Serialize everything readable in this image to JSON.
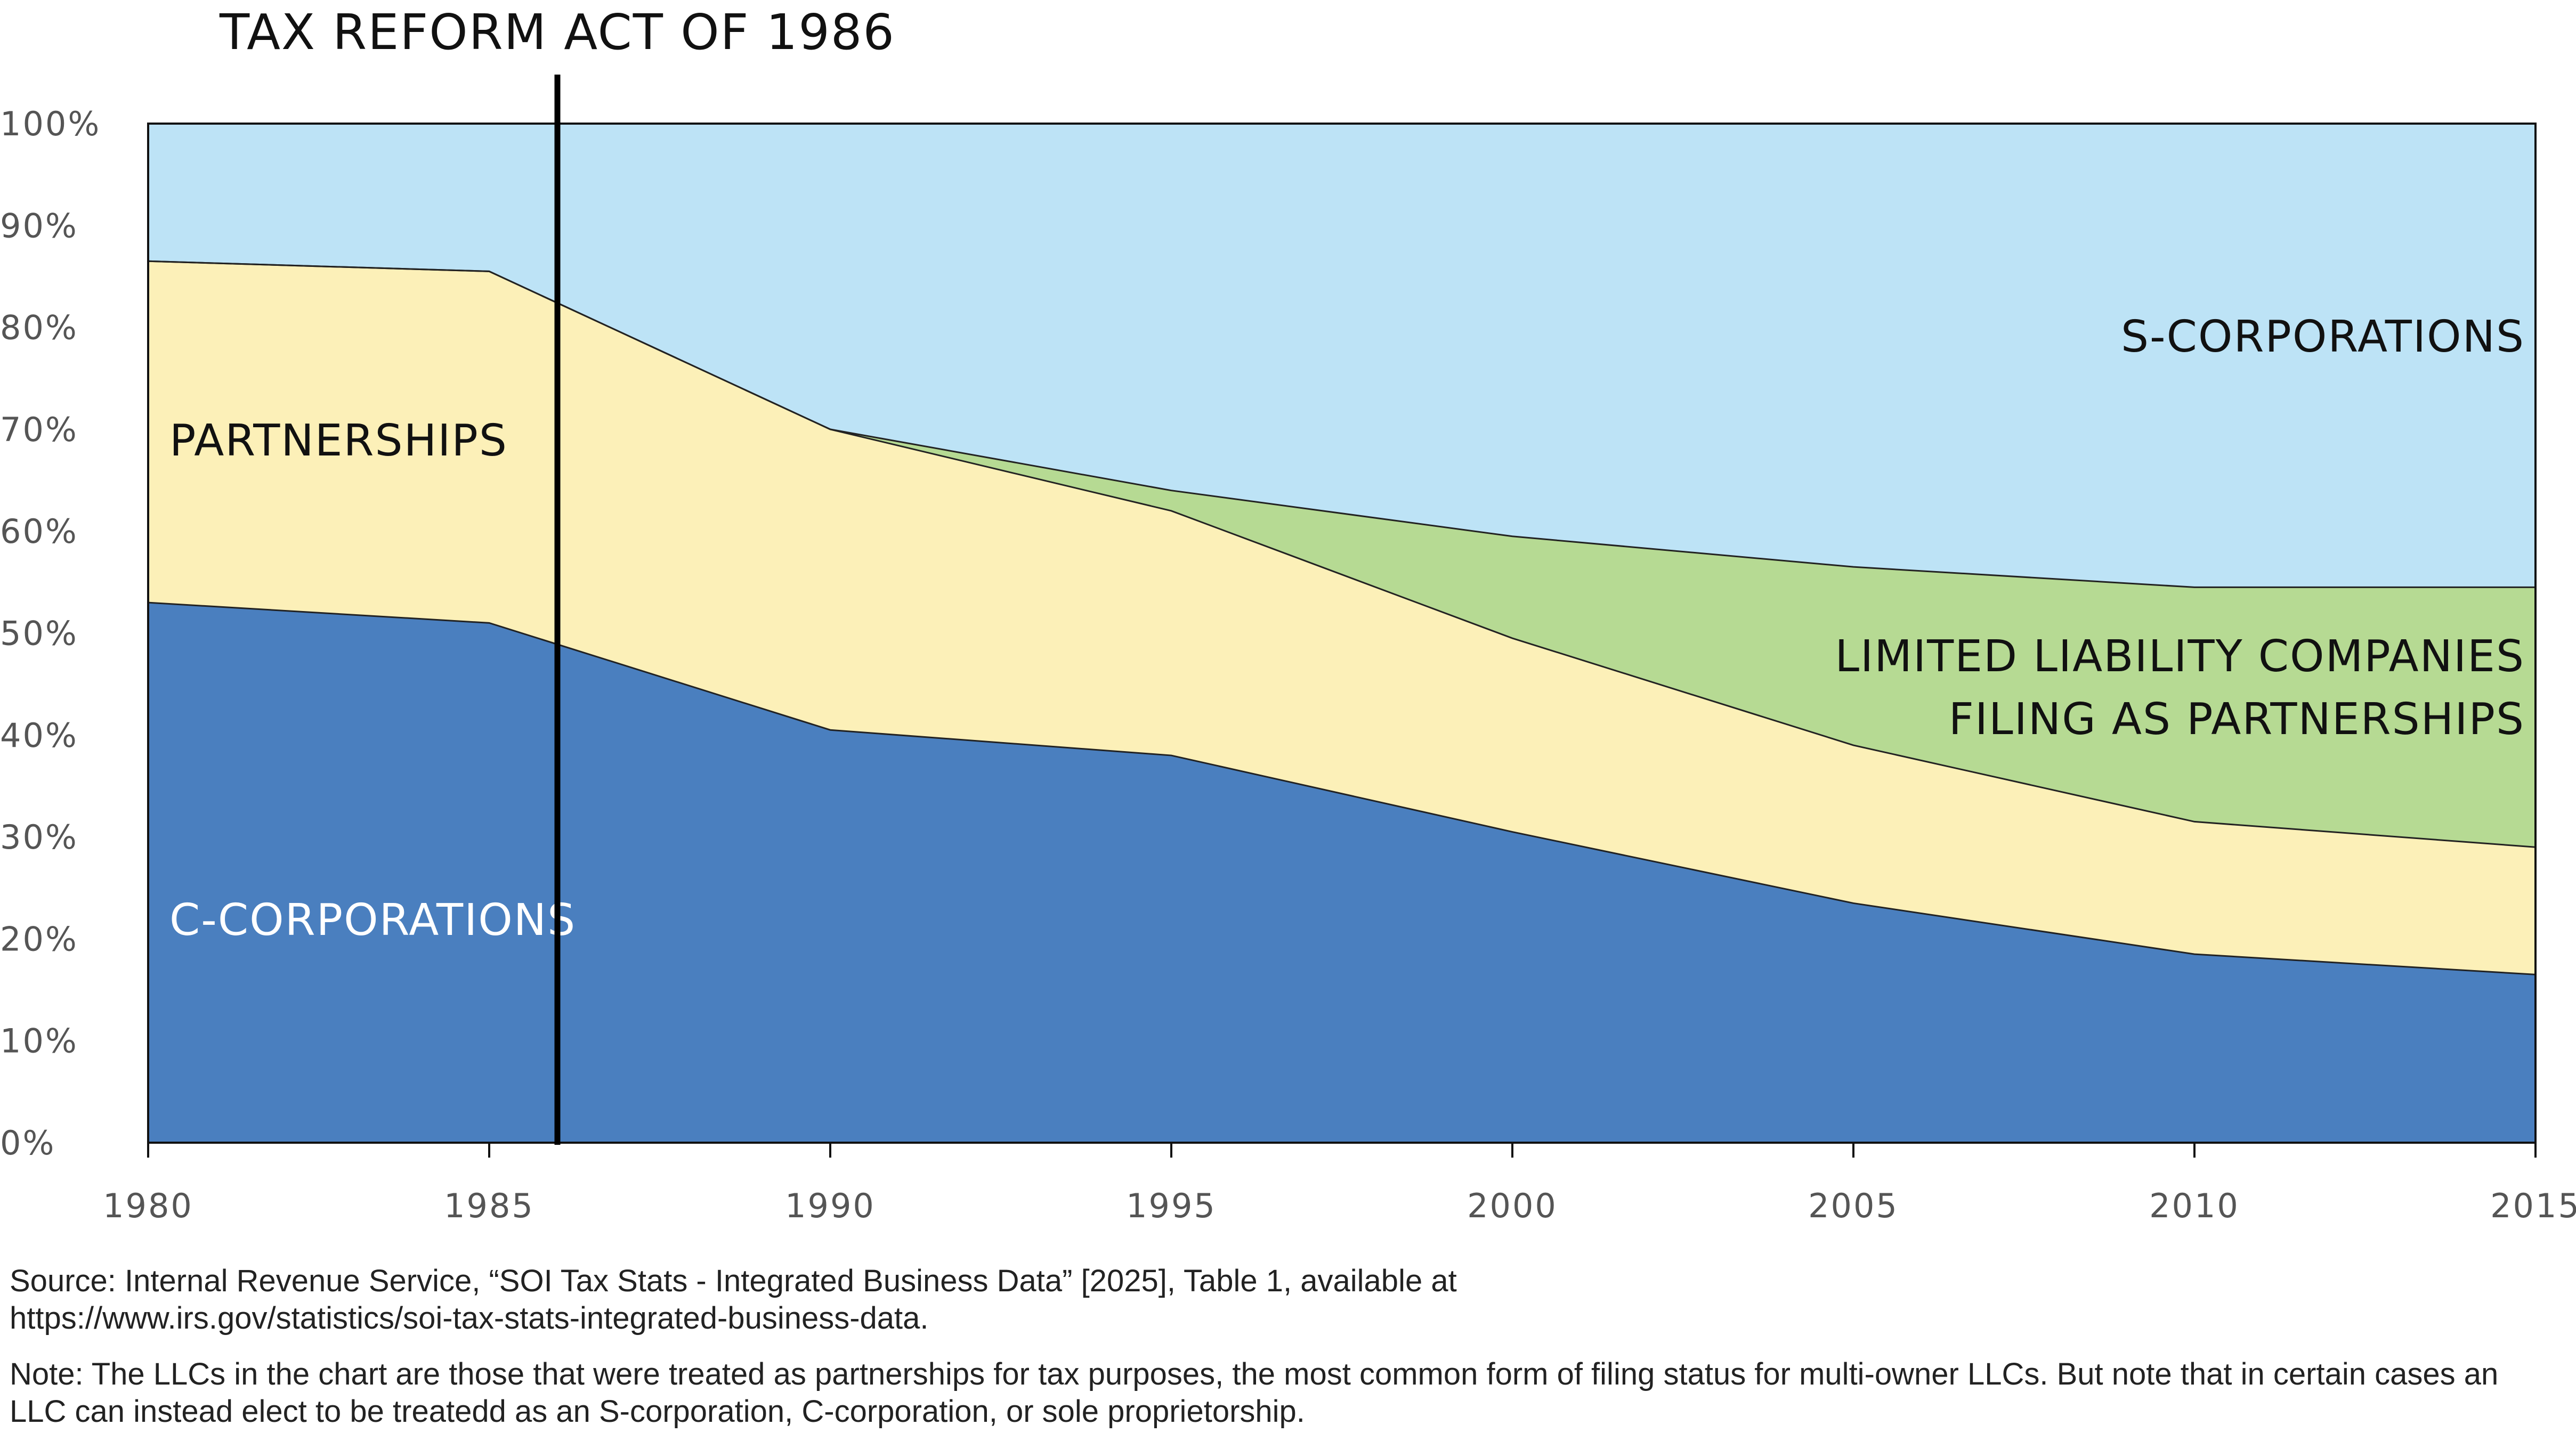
{
  "chart_data": {
    "type": "area",
    "stacked": true,
    "normalized": true,
    "x": [
      1980,
      1985,
      1990,
      1995,
      2000,
      2005,
      2010,
      2015
    ],
    "series": [
      {
        "name": "C-CORPORATIONS",
        "values": [
          53,
          51,
          40.5,
          38,
          30.5,
          23.5,
          18.5,
          16.5
        ],
        "color": "#4a7fbf"
      },
      {
        "name": "PARTNERSHIPS",
        "values": [
          33.5,
          34.5,
          29.5,
          24,
          19,
          15.5,
          13,
          12.5
        ],
        "color": "#fcf0b8"
      },
      {
        "name": "LIMITED LIABILITY COMPANIES FILING AS PARTNERSHIPS",
        "values": [
          0,
          0,
          0,
          2,
          10,
          17.5,
          23,
          25.5
        ],
        "color": "#b6da93"
      },
      {
        "name": "S-CORPORATIONS",
        "values": [
          13.5,
          14.5,
          30,
          36,
          40.5,
          43.5,
          45.5,
          45.5
        ],
        "color": "#bde3f6"
      }
    ],
    "xlim": [
      1980,
      2015
    ],
    "ylim": [
      0,
      100
    ],
    "y_ticks": [
      "0%",
      "10%",
      "20%",
      "30%",
      "40%",
      "50%",
      "60%",
      "70%",
      "80%",
      "90%",
      "100%"
    ],
    "x_ticks": [
      "1980",
      "1985",
      "1990",
      "1995",
      "2000",
      "2005",
      "2010",
      "2015"
    ],
    "label_lines": [
      [
        "C-CORPORATIONS"
      ],
      [
        "PARTNERSHIPS"
      ],
      [
        "LIMITED LIABILITY COMPANIES",
        "FILING AS PARTNERSHIPS"
      ],
      [
        "S-CORPORATIONS"
      ]
    ],
    "annotation": {
      "text": "TAX REFORM ACT OF 1986",
      "x": 1986
    }
  },
  "notes": {
    "source_line1": "Source: Internal Revenue Service, “SOI Tax Stats - Integrated Business Data” [2025], Table 1, available at",
    "source_line2": "https://www.irs.gov/statistics/soi-tax-stats-integrated-business-data.",
    "note_line1": "Note: The LLCs in the chart are those that were treated as partnerships for tax purposes, the most common form of filing status for multi-owner LLCs. But note that in certain cases an",
    "note_line2": "LLC can instead elect to be treatedd as an S-corporation, C-corporation, or sole proprietorship."
  }
}
